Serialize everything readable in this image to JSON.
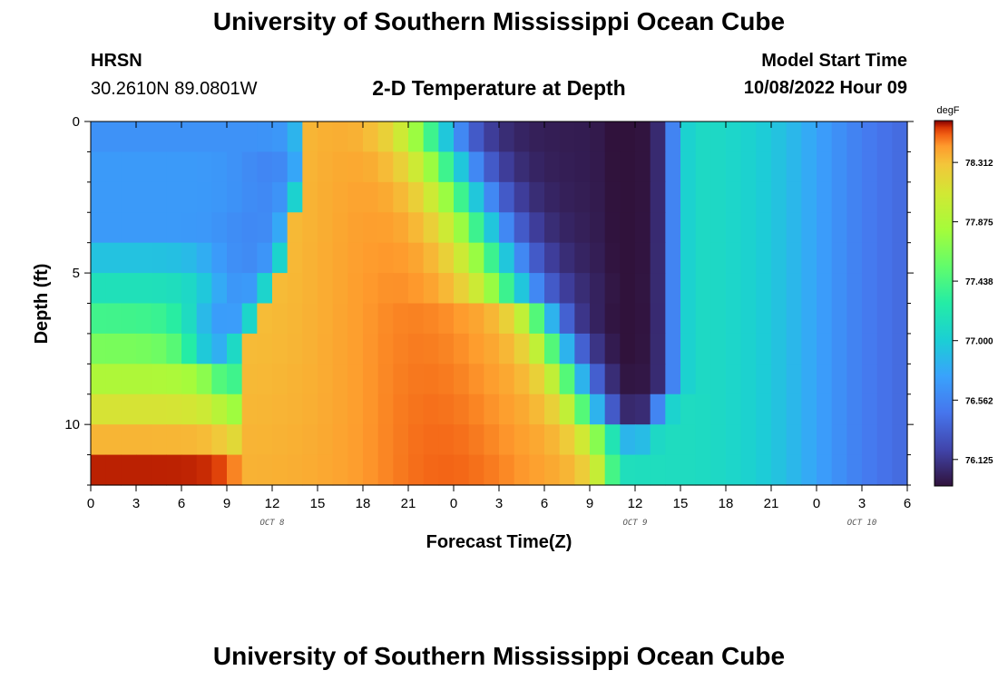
{
  "header": {
    "title": "University of Southern Mississippi Ocean Cube",
    "station": "HRSN",
    "coords": "30.2610N  89.0801W",
    "model_start_label": "Model Start Time",
    "model_start_value": "10/08/2022 Hour 09",
    "footer_title": "University of Southern Mississippi Ocean Cube"
  },
  "chart_data": {
    "type": "heatmap",
    "title": "2-D Temperature at Depth",
    "xlabel": "Forecast Time(Z)",
    "ylabel": "Depth (ft)",
    "x_hours": [
      0,
      54
    ],
    "x_tick_labels": [
      "0",
      "3",
      "6",
      "9",
      "12",
      "15",
      "18",
      "21",
      "0",
      "3",
      "6",
      "9",
      "12",
      "15",
      "18",
      "21",
      "0",
      "3",
      "6"
    ],
    "date_labels": [
      {
        "label": "OCT 8",
        "hour": 12
      },
      {
        "label": "OCT 9",
        "hour": 36
      },
      {
        "label": "OCT 10",
        "hour": 51
      }
    ],
    "y_range_ft": [
      0,
      12
    ],
    "y_ticks": [
      0,
      5,
      10
    ],
    "depth_levels": 12,
    "time_steps": 54,
    "colorbar": {
      "unit": "degF",
      "min": 75.95,
      "max": 78.6,
      "ticks": [
        "78.312",
        "77.875",
        "77.438",
        "77.000",
        "76.562",
        "76.125"
      ]
    },
    "cold_front_hour": [
      0,
      10,
      10,
      9,
      8,
      8,
      7,
      7,
      9,
      10,
      11,
      12
    ],
    "warm_rise_hour": [
      14.5,
      14.5,
      14,
      13.5,
      13,
      12,
      11,
      10,
      10,
      10,
      10,
      10
    ],
    "cool_start_hour": [
      24,
      25,
      26,
      27,
      28,
      29,
      30,
      31,
      32,
      33,
      34,
      35
    ],
    "cold_core_hours": [
      34,
      37
    ],
    "recovery_hour": [
      38.5,
      38.5,
      38.5,
      38.5,
      38.5,
      38.5,
      38.5,
      38.5,
      38.5,
      37.5,
      36.5,
      34.5
    ]
  }
}
